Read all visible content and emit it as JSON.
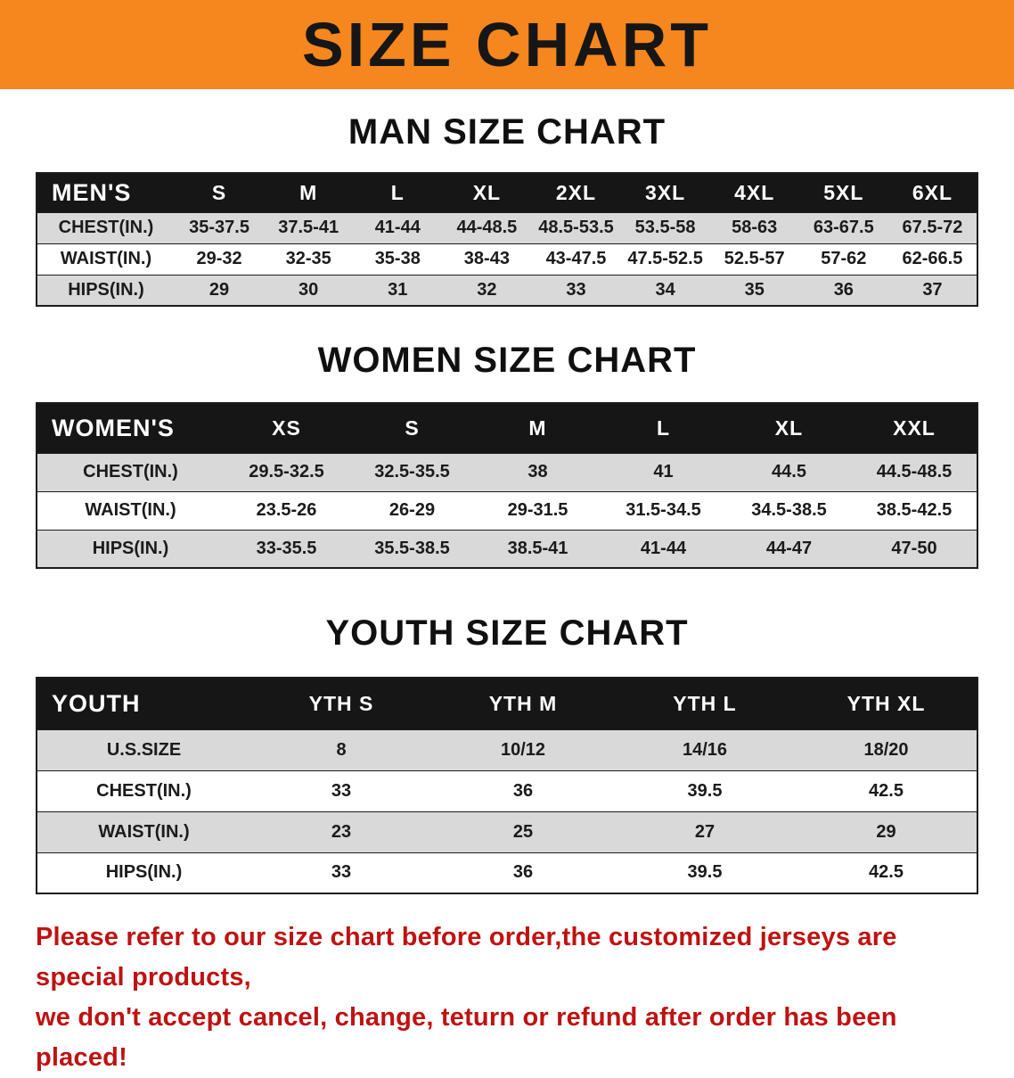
{
  "colors": {
    "banner_bg": "#f6861e",
    "table_header_bg": "#161616",
    "table_header_text": "#ffffff",
    "row_stripe": "#d9d9d9",
    "text": "#1b1b1b",
    "footer_text": "#bf1212"
  },
  "banner": {
    "title": "SIZE CHART"
  },
  "tables": [
    {
      "id": "men",
      "title": "MAN SIZE CHART",
      "header": [
        "MEN'S",
        "S",
        "M",
        "L",
        "XL",
        "2XL",
        "3XL",
        "4XL",
        "5XL",
        "6XL"
      ],
      "rows": [
        [
          "CHEST(IN.)",
          "35-37.5",
          "37.5-41",
          "41-44",
          "44-48.5",
          "48.5-53.5",
          "53.5-58",
          "58-63",
          "63-67.5",
          "67.5-72"
        ],
        [
          "WAIST(IN.)",
          "29-32",
          "32-35",
          "35-38",
          "38-43",
          "43-47.5",
          "47.5-52.5",
          "52.5-57",
          "57-62",
          "62-66.5"
        ],
        [
          "HIPS(IN.)",
          "29",
          "30",
          "31",
          "32",
          "33",
          "34",
          "35",
          "36",
          "37"
        ]
      ]
    },
    {
      "id": "women",
      "title": "WOMEN SIZE CHART",
      "header": [
        "WOMEN'S",
        "XS",
        "S",
        "M",
        "L",
        "XL",
        "XXL"
      ],
      "rows": [
        [
          "CHEST(IN.)",
          "29.5-32.5",
          "32.5-35.5",
          "38",
          "41",
          "44.5",
          "44.5-48.5"
        ],
        [
          "WAIST(IN.)",
          "23.5-26",
          "26-29",
          "29-31.5",
          "31.5-34.5",
          "34.5-38.5",
          "38.5-42.5"
        ],
        [
          "HIPS(IN.)",
          "33-35.5",
          "35.5-38.5",
          "38.5-41",
          "41-44",
          "44-47",
          "47-50"
        ]
      ]
    },
    {
      "id": "youth",
      "title": "YOUTH SIZE CHART",
      "header": [
        "YOUTH",
        "YTH S",
        "YTH M",
        "YTH L",
        "YTH XL"
      ],
      "rows": [
        [
          "U.S.SIZE",
          "8",
          "10/12",
          "14/16",
          "18/20"
        ],
        [
          "CHEST(IN.)",
          "33",
          "36",
          "39.5",
          "42.5"
        ],
        [
          "WAIST(IN.)",
          "23",
          "25",
          "27",
          "29"
        ],
        [
          "HIPS(IN.)",
          "33",
          "36",
          "39.5",
          "42.5"
        ]
      ]
    }
  ],
  "footer": {
    "line1": "Please refer to our size chart before order,the customized jerseys are special products,",
    "line2": "we don't accept cancel, change, teturn or refund after order has been placed!"
  }
}
